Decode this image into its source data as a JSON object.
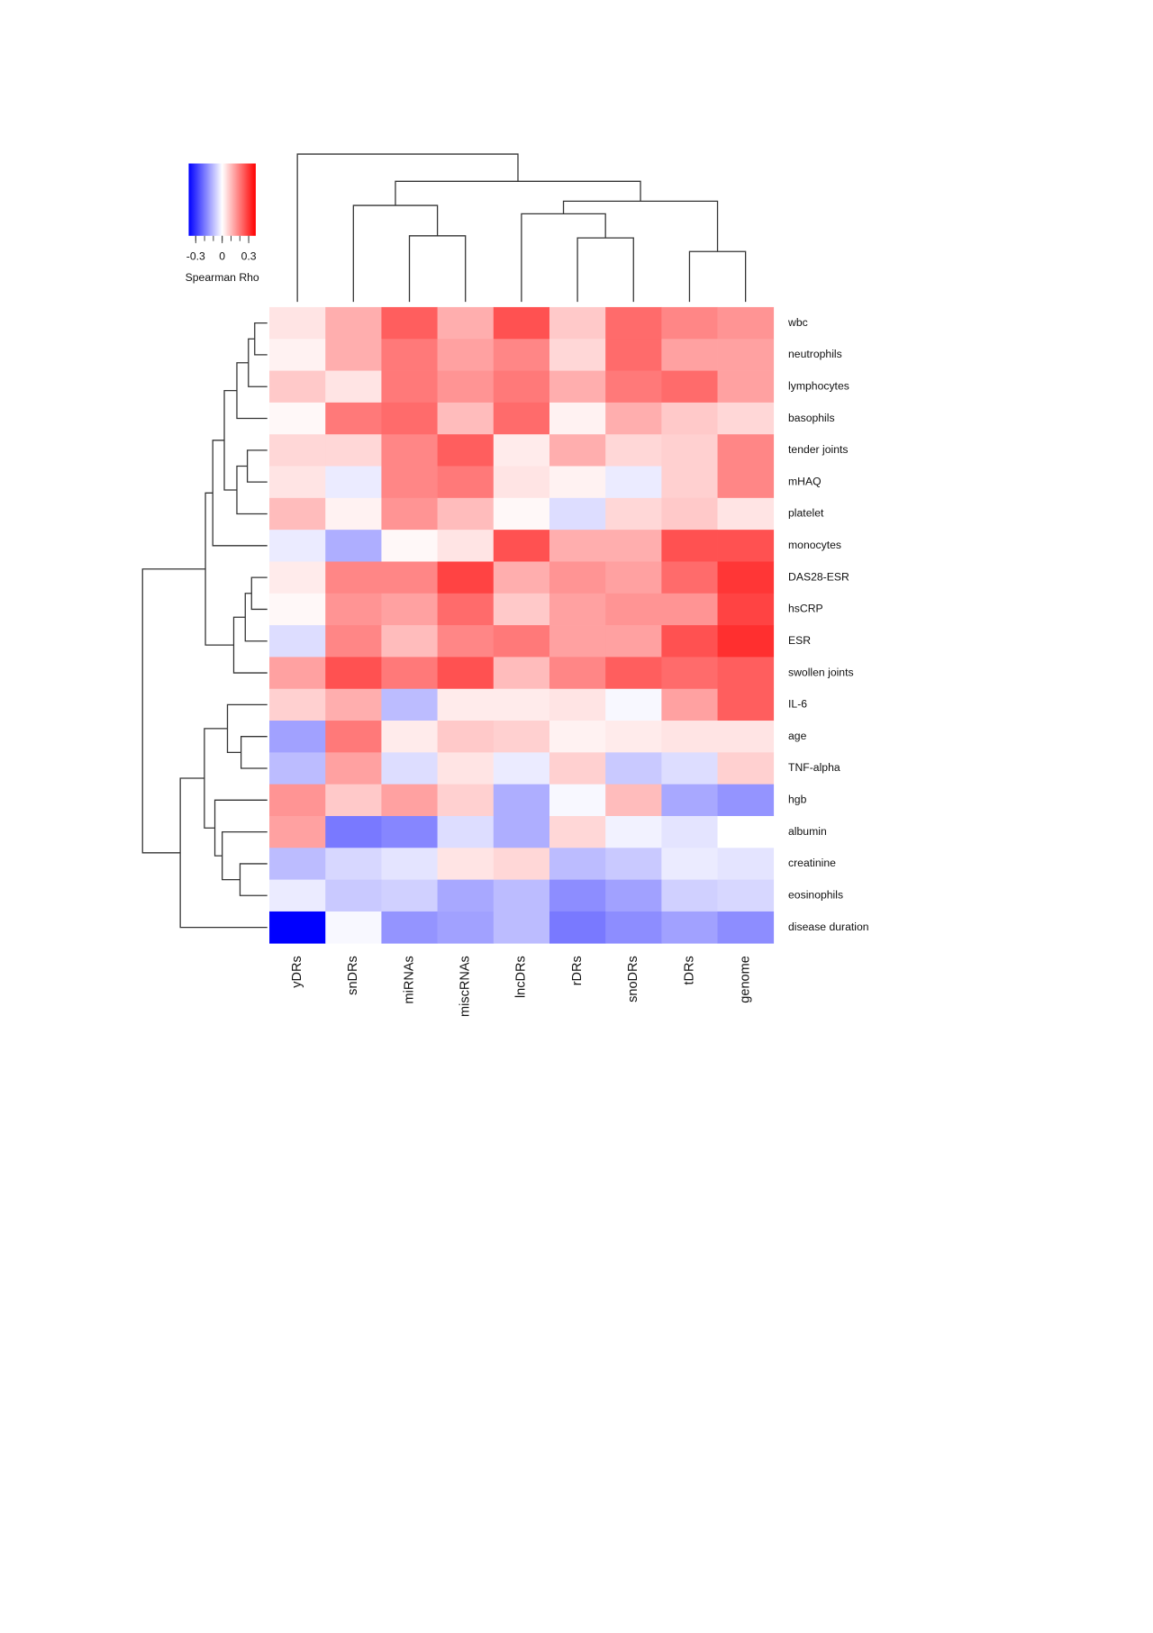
{
  "chart_data": {
    "type": "heatmap",
    "legend_title": "Spearman Rho",
    "zlim": [
      -0.38,
      0.38
    ],
    "legend_ticks": [
      -0.3,
      0,
      0.3
    ],
    "legend_minor_ticks": [
      -0.3,
      -0.2,
      -0.1,
      0,
      0.1,
      0.2,
      0.3
    ],
    "low_color": "#0000ff",
    "mid_color": "#ffffff",
    "high_color": "#ff0000",
    "columns": [
      "yDRs",
      "snDRs",
      "miRNAs",
      "miscRNAs",
      "lncDRs",
      "rDRs",
      "snoDRs",
      "tDRs",
      "genome"
    ],
    "rows": [
      "wbc",
      "neutrophils",
      "lymphocytes",
      "basophils",
      "tender joints",
      "mHAQ",
      "platelet",
      "monocytes",
      "DAS28-ESR",
      "hsCRP",
      "ESR",
      "swollen joints",
      "IL-6",
      "age",
      "TNF-alpha",
      "hgb",
      "albumin",
      "creatinine",
      "eosinophils",
      "disease duration"
    ],
    "values": [
      [
        0.04,
        0.12,
        0.24,
        0.12,
        0.26,
        0.08,
        0.22,
        0.18,
        0.16
      ],
      [
        0.02,
        0.12,
        0.2,
        0.14,
        0.18,
        0.06,
        0.22,
        0.14,
        0.14
      ],
      [
        0.08,
        0.04,
        0.2,
        0.16,
        0.2,
        0.12,
        0.2,
        0.22,
        0.14
      ],
      [
        0.01,
        0.2,
        0.22,
        0.1,
        0.22,
        0.02,
        0.12,
        0.08,
        0.06
      ],
      [
        0.06,
        0.06,
        0.18,
        0.24,
        0.03,
        0.12,
        0.06,
        0.07,
        0.18
      ],
      [
        0.04,
        -0.03,
        0.18,
        0.2,
        0.04,
        0.02,
        -0.03,
        0.07,
        0.18
      ],
      [
        0.1,
        0.02,
        0.16,
        0.1,
        0.01,
        -0.05,
        0.06,
        0.08,
        0.04
      ],
      [
        -0.03,
        -0.12,
        0.01,
        0.04,
        0.26,
        0.12,
        0.12,
        0.26,
        0.26
      ],
      [
        0.03,
        0.18,
        0.18,
        0.28,
        0.12,
        0.16,
        0.14,
        0.22,
        0.3
      ],
      [
        0.01,
        0.16,
        0.14,
        0.22,
        0.08,
        0.14,
        0.16,
        0.16,
        0.28
      ],
      [
        -0.05,
        0.18,
        0.1,
        0.18,
        0.2,
        0.14,
        0.14,
        0.26,
        0.31
      ],
      [
        0.14,
        0.26,
        0.2,
        0.26,
        0.1,
        0.18,
        0.24,
        0.22,
        0.24
      ],
      [
        0.07,
        0.12,
        -0.1,
        0.03,
        0.03,
        0.04,
        -0.01,
        0.14,
        0.24
      ],
      [
        -0.14,
        0.2,
        0.03,
        0.08,
        0.07,
        0.02,
        0.03,
        0.04,
        0.04
      ],
      [
        -0.1,
        0.14,
        -0.05,
        0.04,
        -0.03,
        0.07,
        -0.08,
        -0.05,
        0.07
      ],
      [
        0.16,
        0.08,
        0.14,
        0.07,
        -0.12,
        -0.01,
        0.1,
        -0.13,
        -0.16
      ],
      [
        0.14,
        -0.2,
        -0.18,
        -0.05,
        -0.12,
        0.06,
        -0.02,
        -0.04,
        0
      ],
      [
        -0.1,
        -0.06,
        -0.04,
        0.04,
        0.06,
        -0.1,
        -0.08,
        -0.03,
        -0.04
      ],
      [
        -0.03,
        -0.08,
        -0.07,
        -0.13,
        -0.1,
        -0.17,
        -0.14,
        -0.07,
        -0.06
      ],
      [
        -0.38,
        -0.01,
        -0.16,
        -0.14,
        -0.1,
        -0.2,
        -0.17,
        -0.14,
        -0.17
      ]
    ]
  }
}
